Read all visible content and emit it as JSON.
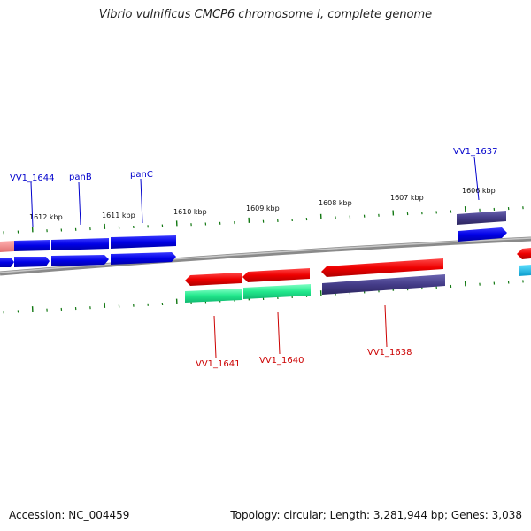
{
  "title": "Vibrio vulnificus CMCP6 chromosome I, complete genome",
  "accession": "Accession: NC_004459",
  "summary": "Topology: circular; Length: 3,281,944 bp; Genes: 3,038",
  "colors": {
    "forward_gene": "#0000ee",
    "reverse_gene": "#ee0000",
    "forward_label": "#0000cc",
    "reverse_label": "#cc0000",
    "cds_forward": "#443c88",
    "cds_reverse": "#22e88c",
    "backbone": "#8a8a8a",
    "tick": "#117711"
  },
  "kbp_labels": [
    "1612 kbp",
    "1611 kbp",
    "1610 kbp",
    "1609 kbp",
    "1608 kbp",
    "1607 kbp",
    "1606 kbp"
  ],
  "gene_labels": {
    "forward": [
      "VV1_1644",
      "panB",
      "panC",
      "VV1_1637"
    ],
    "reverse": [
      "VV1_1641",
      "VV1_1640",
      "VV1_1638"
    ]
  }
}
